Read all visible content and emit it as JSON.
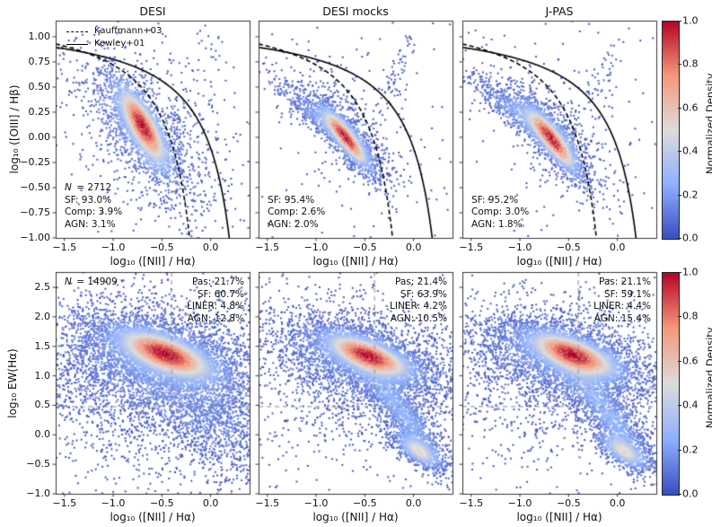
{
  "chart_data": {
    "type": "scatter",
    "subtype": "density-colored scatter grid (BPT and WHAN diagnostic diagrams)",
    "titles": [
      "DESI",
      "DESI mocks",
      "J-PAS"
    ],
    "colormap": {
      "name": "coolwarm",
      "anchors": [
        {
          "t": 0.0,
          "c": "#3b4cc0"
        },
        {
          "t": 0.25,
          "c": "#8db0fe"
        },
        {
          "t": 0.5,
          "c": "#dddcdb"
        },
        {
          "t": 0.75,
          "c": "#f4987a"
        },
        {
          "t": 1.0,
          "c": "#b40426"
        }
      ]
    },
    "colorbar": {
      "label": "Normalized Density",
      "tick_values": [
        0.0,
        0.2,
        0.4,
        0.6,
        0.8,
        1.0
      ],
      "tick_labels": [
        "0.0",
        "0.2",
        "0.4",
        "0.6",
        "0.8",
        "1.0"
      ]
    },
    "axes": {
      "x": {
        "label": "log₁₀ ([NII] / Hα)",
        "range": [
          -1.59,
          0.4
        ],
        "tick_values": [
          -1.5,
          -1.0,
          -0.5,
          0.0
        ],
        "tick_labels": [
          "−1.5",
          "−1.0",
          "−0.5",
          "0.0"
        ]
      },
      "y_top": {
        "label": "log₁₀ ([OIII] / Hβ)",
        "range": [
          -1.0,
          1.16
        ],
        "tick_values": [
          1.0,
          0.75,
          0.5,
          0.25,
          0.0,
          -0.25,
          -0.5,
          -0.75,
          -1.0
        ],
        "tick_labels": [
          "1.00",
          "0.75",
          "0.50",
          "0.25",
          "0.00",
          "−0.25",
          "−0.50",
          "−0.75",
          "−1.00"
        ]
      },
      "y_bottom": {
        "label": "log₁₀  EW(Hα)",
        "range": [
          -1.0,
          2.76
        ],
        "tick_values": [
          2.5,
          2.0,
          1.5,
          1.0,
          0.5,
          0.0,
          -0.5,
          -1.0
        ],
        "tick_labels": [
          "2.5",
          "2.0",
          "1.5",
          "1.0",
          "0.5",
          "0.0",
          "−0.5",
          "−1.0"
        ]
      }
    },
    "legend": [
      {
        "style": "dashed",
        "label": "Kauffmann+03"
      },
      {
        "style": "solid",
        "label": "Kewley+01"
      }
    ],
    "curves": {
      "kauffmann03": {
        "a": 0.61,
        "b": 0.05,
        "c": 1.3,
        "style": "dashed",
        "color": "#000000"
      },
      "kewley01": {
        "a": 0.61,
        "b": 0.47,
        "c": 1.19,
        "style": "solid",
        "color": "#000000"
      }
    },
    "whan_lines": {
      "x_div": -0.4,
      "ew_low": 0.478,
      "ew_high": 0.778,
      "color": "#8a8a8a"
    },
    "panels": [
      {
        "id": "bpt-desi",
        "row": "top",
        "col": 0,
        "title": "DESI",
        "stats_anchor": "bottom-left",
        "stats_lines": [
          "N = 2712",
          "SF: 93.0%",
          "Comp: 3.9%",
          "AGN: 3.1%"
        ],
        "n_points": 3000,
        "seed": 11,
        "show_curves": true,
        "components": [
          {
            "a": 1.0,
            "cx": -0.7,
            "cy": 0.12,
            "sx": 0.24,
            "sy": 0.075,
            "rot": -60
          },
          {
            "a": 0.32,
            "cx": -0.7,
            "cy": 0.06,
            "sx": 0.4,
            "sy": 0.155,
            "rot": -56
          },
          {
            "a": 0.055,
            "cx": -0.64,
            "cy": 0.05,
            "sx": 0.62,
            "sy": 0.34,
            "rot": -45
          },
          {
            "a": 0.016,
            "cx": -0.08,
            "cy": 0.62,
            "sx": 0.34,
            "sy": 0.17,
            "rot": 62
          },
          {
            "uniform": true,
            "w": 0.0012
          }
        ]
      },
      {
        "id": "bpt-mocks",
        "row": "top",
        "col": 1,
        "title": "DESI mocks",
        "stats_anchor": "bottom-left",
        "stats_lines": [
          "SF: 95.4%",
          "Comp: 2.6%",
          "AGN: 2.0%"
        ],
        "n_points": 2600,
        "seed": 22,
        "show_curves": true,
        "components": [
          {
            "a": 1.0,
            "cx": -0.69,
            "cy": -0.01,
            "sx": 0.21,
            "sy": 0.05,
            "rot": -52
          },
          {
            "a": 0.25,
            "cx": -0.67,
            "cy": 0.0,
            "sx": 0.3,
            "sy": 0.11,
            "rot": -50
          },
          {
            "a": 0.26,
            "cx": -0.92,
            "cy": 0.16,
            "sx": 0.34,
            "sy": 0.07,
            "rot": -37
          },
          {
            "a": 0.045,
            "cx": -0.18,
            "cy": 0.62,
            "sx": 0.26,
            "sy": 0.05,
            "rot": 68
          },
          {
            "a": 0.02,
            "cx": -0.62,
            "cy": 0.05,
            "sx": 0.5,
            "sy": 0.27,
            "rot": -45
          },
          {
            "uniform": true,
            "w": 0.0008
          }
        ]
      },
      {
        "id": "bpt-jpas",
        "row": "top",
        "col": 2,
        "title": "J-PAS",
        "stats_anchor": "bottom-left",
        "stats_lines": [
          "SF: 95.2%",
          "Comp: 3.0%",
          "AGN: 1.8%"
        ],
        "n_points": 2800,
        "seed": 33,
        "show_curves": true,
        "components": [
          {
            "a": 1.0,
            "cx": -0.66,
            "cy": -0.04,
            "sx": 0.22,
            "sy": 0.055,
            "rot": -52
          },
          {
            "a": 0.27,
            "cx": -0.66,
            "cy": 0.0,
            "sx": 0.32,
            "sy": 0.12,
            "rot": -48
          },
          {
            "a": 0.28,
            "cx": -0.95,
            "cy": 0.2,
            "sx": 0.36,
            "sy": 0.08,
            "rot": -35
          },
          {
            "a": 0.05,
            "cx": -0.15,
            "cy": 0.6,
            "sx": 0.27,
            "sy": 0.055,
            "rot": 66
          },
          {
            "a": 0.022,
            "cx": -0.62,
            "cy": 0.05,
            "sx": 0.52,
            "sy": 0.28,
            "rot": -45
          },
          {
            "uniform": true,
            "w": 0.0008
          }
        ]
      },
      {
        "id": "whan-desi",
        "row": "bottom",
        "col": 0,
        "n_label": "N = 14909",
        "stats_anchor": "top-right",
        "stats_lines": [
          "Pas: 21.7%",
          "SF: 60.7%",
          "LINER: 4.8%",
          "AGN: 12.8%"
        ],
        "n_points": 9500,
        "seed": 44,
        "show_whan_lines": true,
        "components": [
          {
            "a": 1.0,
            "cx": -0.47,
            "cy": 1.38,
            "sx": 0.33,
            "sy": 0.15,
            "rot": -38
          },
          {
            "a": 0.22,
            "cx": -0.5,
            "cy": 1.25,
            "sx": 0.62,
            "sy": 0.4,
            "rot": -35
          },
          {
            "a": 0.06,
            "cx": -0.4,
            "cy": 0.85,
            "sx": 0.85,
            "sy": 0.75,
            "rot": -30
          },
          {
            "a": 0.1,
            "cx": 0.0,
            "cy": 0.15,
            "sx": 0.55,
            "sy": 0.25,
            "rot": -60
          },
          {
            "uniform": true,
            "w": 0.004
          }
        ]
      },
      {
        "id": "whan-mocks",
        "row": "bottom",
        "col": 1,
        "stats_anchor": "top-right",
        "stats_lines": [
          "Pas: 21.4%",
          "SF: 63.9%",
          "LINER: 4.2%",
          "AGN: 10.5%"
        ],
        "n_points": 8000,
        "seed": 55,
        "show_whan_lines": true,
        "components": [
          {
            "a": 1.0,
            "cx": -0.46,
            "cy": 1.34,
            "sx": 0.3,
            "sy": 0.13,
            "rot": -38
          },
          {
            "a": 0.2,
            "cx": -0.55,
            "cy": 1.3,
            "sx": 0.55,
            "sy": 0.33,
            "rot": -33
          },
          {
            "a": 0.3,
            "cx": -0.1,
            "cy": 0.35,
            "sx": 0.52,
            "sy": 0.105,
            "rot": -64
          },
          {
            "a": 0.62,
            "cx": 0.05,
            "cy": -0.28,
            "sx": 0.2,
            "sy": 0.085,
            "rot": -56
          },
          {
            "a": 0.035,
            "cx": -0.5,
            "cy": 0.95,
            "sx": 0.75,
            "sy": 0.7,
            "rot": -30
          },
          {
            "uniform": true,
            "w": 0.002
          }
        ]
      },
      {
        "id": "whan-jpas",
        "row": "bottom",
        "col": 2,
        "stats_anchor": "top-right",
        "stats_lines": [
          "Pas: 21.1%",
          "SF: 59.1%",
          "LINER: 4.4%",
          "AGN: 15.4%"
        ],
        "n_points": 8200,
        "seed": 66,
        "show_whan_lines": true,
        "components": [
          {
            "a": 1.0,
            "cx": -0.45,
            "cy": 1.36,
            "sx": 0.31,
            "sy": 0.14,
            "rot": -38
          },
          {
            "a": 0.21,
            "cx": -0.55,
            "cy": 1.3,
            "sx": 0.57,
            "sy": 0.35,
            "rot": -33
          },
          {
            "a": 0.3,
            "cx": -0.08,
            "cy": 0.33,
            "sx": 0.54,
            "sy": 0.11,
            "rot": -64
          },
          {
            "a": 0.6,
            "cx": 0.06,
            "cy": -0.28,
            "sx": 0.21,
            "sy": 0.09,
            "rot": -56
          },
          {
            "a": 0.04,
            "cx": -0.5,
            "cy": 0.95,
            "sx": 0.78,
            "sy": 0.72,
            "rot": -30
          },
          {
            "uniform": true,
            "w": 0.002
          }
        ]
      }
    ]
  }
}
